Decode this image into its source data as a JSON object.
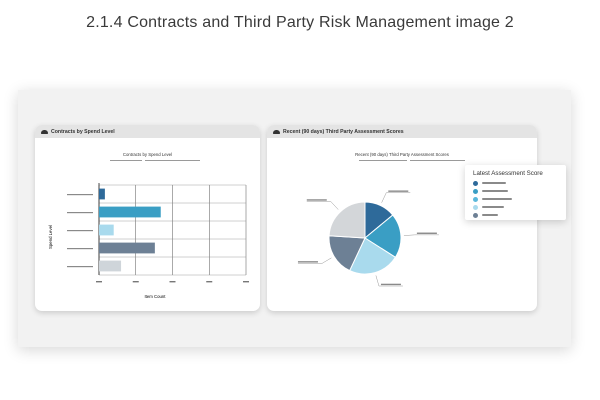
{
  "page": {
    "title": "2.1.4 Contracts and Third Party Risk Management image 2"
  },
  "left_card": {
    "header": "Contracts by Spend Level",
    "icon": "cloud-icon",
    "chart_title": "Contracts by Spend Level",
    "xlabel": "Item Count",
    "ylabel": "Spend Level"
  },
  "right_card": {
    "header": "Recent (90 days) Third Party Assessment Scores",
    "icon": "cloud-icon",
    "chart_title": "Recent (90 days) Third Party Assessment Scores"
  },
  "legend": {
    "title": "Latest Assessment Score",
    "colors": [
      "#2e6a9a",
      "#3a9ec4",
      "#5bb8db",
      "#a9daed",
      "#6d8095"
    ]
  },
  "chart_data": [
    {
      "type": "bar",
      "orientation": "horizontal",
      "title": "Contracts by Spend Level",
      "xlabel": "Item Count",
      "ylabel": "Spend Level",
      "xlim": [
        0,
        100
      ],
      "grid": true,
      "values": [
        4,
        42,
        10,
        38,
        15
      ],
      "colors": [
        "#2e6a9a",
        "#3a9ec4",
        "#a9daed",
        "#6d8095",
        "#cfd5da"
      ]
    },
    {
      "type": "pie",
      "title": "Recent (90 days) Third Party Assessment Scores",
      "values": [
        14,
        20,
        23,
        19,
        24
      ],
      "colors": [
        "#2e6a9a",
        "#3a9ec4",
        "#a9daed",
        "#6d8095",
        "#d3d6d9"
      ]
    }
  ]
}
